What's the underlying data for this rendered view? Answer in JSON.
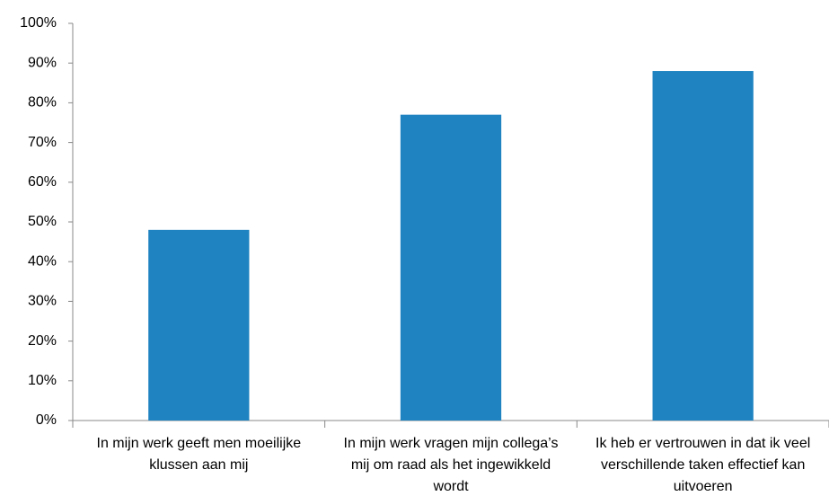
{
  "chart_data": {
    "type": "bar",
    "categories": [
      "In mijn werk geeft men moeilijke klussen aan mij",
      "In mijn werk vragen mijn collega’s mij om raad als het ingewikkeld wordt",
      "Ik heb er vertrouwen in dat ik veel verschillende taken effectief kan uitvoeren"
    ],
    "values": [
      48,
      77,
      88
    ],
    "color": "#1f83c1",
    "ylim": [
      0,
      100
    ],
    "yticks": [
      {
        "value": 0,
        "label": "0%"
      },
      {
        "value": 10,
        "label": "10%"
      },
      {
        "value": 20,
        "label": "20%"
      },
      {
        "value": 30,
        "label": "30%"
      },
      {
        "value": 40,
        "label": "40%"
      },
      {
        "value": 50,
        "label": "50%"
      },
      {
        "value": 60,
        "label": "60%"
      },
      {
        "value": 70,
        "label": "70%"
      },
      {
        "value": 80,
        "label": "80%"
      },
      {
        "value": 90,
        "label": "90%"
      },
      {
        "value": 100,
        "label": "100%"
      }
    ],
    "grid": false
  }
}
